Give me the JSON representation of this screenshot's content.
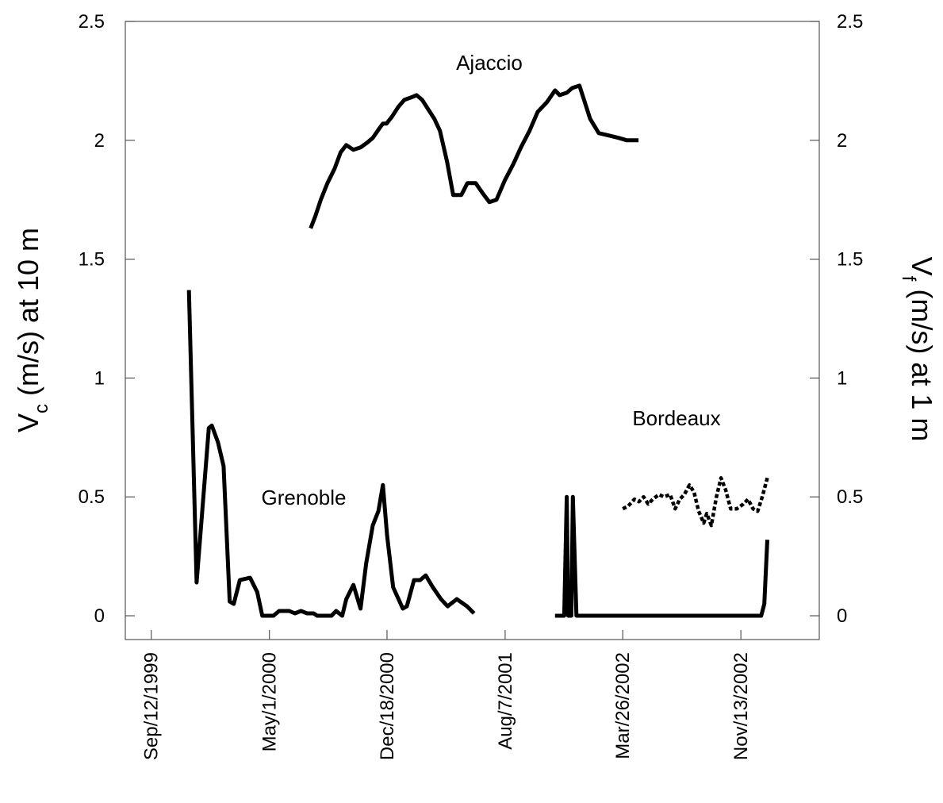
{
  "chart_data": {
    "type": "line",
    "xlim": [
      "1999-07-23",
      "2003-04-16"
    ],
    "xticks": [
      {
        "value": "1999-09-12",
        "label": "Sep/12/1999"
      },
      {
        "value": "2000-05-01",
        "label": "May/1/2000"
      },
      {
        "value": "2000-12-18",
        "label": "Dec/18/2000"
      },
      {
        "value": "2001-08-07",
        "label": "Aug/7/2001"
      },
      {
        "value": "2002-03-26",
        "label": "Mar/26/2002"
      },
      {
        "value": "2002-11-13",
        "label": "Nov/13/2002"
      }
    ],
    "ylim": [
      -0.1,
      2.5
    ],
    "yticks": [
      0,
      0.5,
      1,
      1.5,
      2,
      2.5
    ],
    "y2lim": [
      -0.1,
      2.5
    ],
    "y2ticks": [
      0,
      0.5,
      1,
      1.5,
      2,
      2.5
    ],
    "ylabel": [
      "V",
      "c",
      " (m/s) at 10 m"
    ],
    "y2label": [
      "V",
      "f",
      " (m/s) at 1 m"
    ],
    "annotations": [
      "Ajaccio",
      "Grenoble",
      "Bordeaux"
    ],
    "series": [
      {
        "color": "#000000",
        "style": "solid",
        "x": [
          "1999-11-25",
          "1999-12-10",
          "2000-01-03",
          "2000-01-09",
          "2000-01-21",
          "2000-02-01",
          "2000-02-13",
          "2000-02-21",
          "2000-03-04",
          "2000-03-24",
          "2000-04-07",
          "2000-04-17",
          "2000-05-09",
          "2000-05-20",
          "2000-06-09",
          "2000-06-20",
          "2000-07-02",
          "2000-07-14",
          "2000-07-27",
          "2000-08-03",
          "2000-08-31",
          "2000-09-09",
          "2000-09-21",
          "2000-09-29",
          "2000-10-13",
          "2000-10-27",
          "2000-11-07",
          "2000-11-20",
          "2000-12-01",
          "2000-12-10",
          "2000-12-18",
          "2000-12-30",
          "2001-01-18",
          "2001-01-26",
          "2001-02-09",
          "2001-02-21",
          "2001-03-04",
          "2001-03-18",
          "2001-04-03",
          "2001-04-16",
          "2001-05-04",
          "2001-05-24",
          "2001-06-07"
        ],
        "values": [
          1.37,
          0.14,
          0.79,
          0.8,
          0.73,
          0.63,
          0.06,
          0.05,
          0.15,
          0.16,
          0.1,
          0,
          0,
          0.02,
          0.02,
          0.01,
          0.02,
          0.01,
          0.01,
          0,
          0,
          0.02,
          0,
          0.07,
          0.13,
          0.03,
          0.22,
          0.38,
          0.44,
          0.55,
          0.34,
          0.12,
          0.03,
          0.04,
          0.15,
          0.15,
          0.17,
          0.12,
          0.07,
          0.04,
          0.07,
          0.04,
          0.01
        ]
      },
      {
        "color": "#000000",
        "style": "solid",
        "x": [
          "2000-07-21",
          "2000-07-30",
          "2000-08-10",
          "2000-08-23",
          "2000-09-06",
          "2000-09-18",
          "2000-09-29",
          "2000-10-13",
          "2000-10-27",
          "2000-11-09",
          "2000-11-20",
          "2000-12-03",
          "2000-12-10",
          "2000-12-17",
          "2000-12-28",
          "2001-01-09",
          "2001-01-21",
          "2001-02-03",
          "2001-02-14",
          "2001-02-25",
          "2001-03-09",
          "2001-03-21",
          "2001-04-01",
          "2001-04-15",
          "2001-04-27",
          "2001-05-13",
          "2001-05-25",
          "2001-06-10",
          "2001-06-23",
          "2001-07-07",
          "2001-07-21",
          "2001-08-06",
          "2001-08-23",
          "2001-09-07",
          "2001-09-24",
          "2001-10-10",
          "2001-10-28",
          "2001-11-13",
          "2001-11-22",
          "2001-12-06",
          "2001-12-17",
          "2001-12-31",
          "2002-01-21",
          "2002-02-07",
          "2002-02-27",
          "2002-03-18",
          "2002-04-03",
          "2002-04-26"
        ],
        "values": [
          1.63,
          1.68,
          1.75,
          1.82,
          1.88,
          1.95,
          1.98,
          1.96,
          1.97,
          1.99,
          2.01,
          2.05,
          2.07,
          2.07,
          2.1,
          2.14,
          2.17,
          2.18,
          2.19,
          2.17,
          2.13,
          2.09,
          2.04,
          1.91,
          1.77,
          1.77,
          1.82,
          1.82,
          1.78,
          1.74,
          1.75,
          1.83,
          1.9,
          1.97,
          2.04,
          2.12,
          2.16,
          2.21,
          2.19,
          2.2,
          2.22,
          2.23,
          2.09,
          2.03,
          2.02,
          2.01,
          2,
          2
        ]
      },
      {
        "color": "#000000",
        "style": "solid",
        "x": [
          "2001-11-13",
          "2001-12-01",
          "2001-12-06",
          "2001-12-09",
          "2001-12-15",
          "2001-12-18",
          "2001-12-25",
          "2002-12-23",
          "2002-12-29",
          "2003-01-04"
        ],
        "values": [
          0,
          0,
          0.5,
          0,
          0,
          0.5,
          0,
          0,
          0.05,
          0.32
        ]
      },
      {
        "color": "#000000",
        "style": "dotted",
        "axis": "y2",
        "x": [
          "2002-03-26",
          "2002-04-05",
          "2002-04-18",
          "2002-04-27",
          "2002-05-06",
          "2002-05-15",
          "2002-05-24",
          "2002-06-05",
          "2002-06-15",
          "2002-06-27",
          "2002-07-07",
          "2002-07-16",
          "2002-07-25",
          "2002-08-04",
          "2002-08-13",
          "2002-08-22",
          "2002-09-01",
          "2002-09-07",
          "2002-09-16",
          "2002-09-26",
          "2002-10-05",
          "2002-10-14",
          "2002-10-24",
          "2002-11-05",
          "2002-11-18",
          "2002-11-27",
          "2002-12-07",
          "2002-12-16",
          "2002-12-25",
          "2003-01-04"
        ],
        "values": [
          0.45,
          0.46,
          0.49,
          0.48,
          0.5,
          0.47,
          0.49,
          0.51,
          0.5,
          0.51,
          0.45,
          0.49,
          0.51,
          0.55,
          0.52,
          0.44,
          0.39,
          0.43,
          0.38,
          0.5,
          0.58,
          0.53,
          0.45,
          0.45,
          0.47,
          0.49,
          0.45,
          0.44,
          0.5,
          0.58
        ]
      }
    ]
  }
}
